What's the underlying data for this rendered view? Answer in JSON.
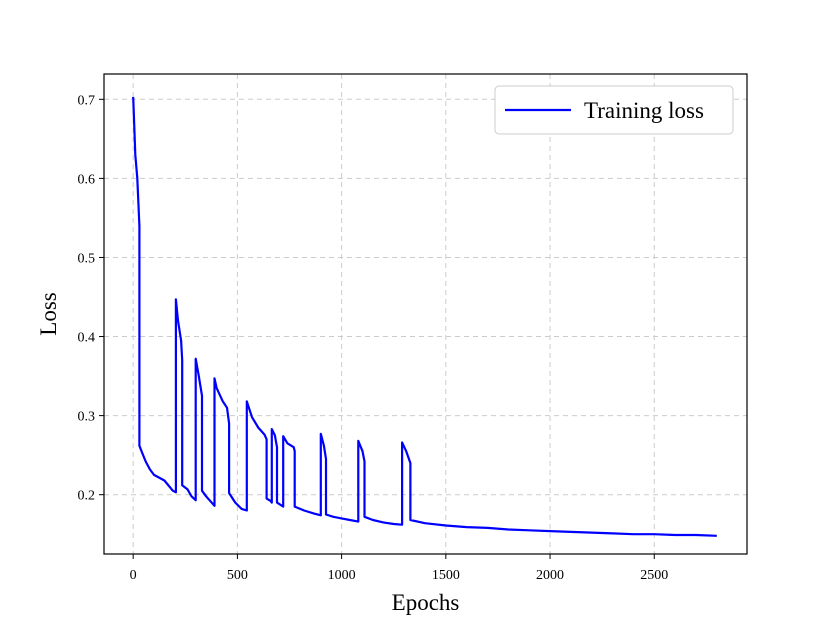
{
  "chart_data": {
    "type": "line",
    "title": "",
    "xlabel": "Epochs",
    "ylabel": "Loss",
    "xlim": [
      -140,
      2945
    ],
    "ylim": [
      0.125,
      0.732
    ],
    "xticks": [
      0,
      500,
      1000,
      1500,
      2000,
      2500
    ],
    "xtick_labels": [
      "0",
      "500",
      "1000",
      "1500",
      "2000",
      "2500"
    ],
    "yticks": [
      0.2,
      0.3,
      0.4,
      0.5,
      0.6,
      0.7
    ],
    "ytick_labels": [
      "0.2",
      "0.3",
      "0.4",
      "0.5",
      "0.6",
      "0.7"
    ],
    "grid": true,
    "legend_position": "top-right",
    "series": [
      {
        "name": "Training loss",
        "color": "#0000ff",
        "x": [
          0,
          10,
          20,
          30,
          30,
          40,
          60,
          80,
          100,
          150,
          190,
          205,
          205,
          215,
          230,
          235,
          235,
          260,
          280,
          300,
          300,
          315,
          330,
          330,
          350,
          390,
          390,
          400,
          430,
          450,
          460,
          460,
          490,
          520,
          545,
          545,
          570,
          600,
          630,
          640,
          640,
          660,
          665,
          665,
          680,
          690,
          690,
          720,
          720,
          740,
          770,
          775,
          775,
          820,
          870,
          900,
          900,
          915,
          925,
          925,
          960,
          1000,
          1040,
          1080,
          1080,
          1100,
          1110,
          1110,
          1150,
          1200,
          1250,
          1290,
          1290,
          1310,
          1330,
          1330,
          1400,
          1500,
          1600,
          1700,
          1800,
          1900,
          2000,
          2100,
          2200,
          2300,
          2400,
          2500,
          2600,
          2700,
          2800
        ],
        "y": [
          0.703,
          0.63,
          0.6,
          0.54,
          0.262,
          0.255,
          0.242,
          0.232,
          0.225,
          0.218,
          0.205,
          0.203,
          0.447,
          0.42,
          0.395,
          0.37,
          0.212,
          0.207,
          0.198,
          0.193,
          0.372,
          0.35,
          0.325,
          0.205,
          0.198,
          0.186,
          0.347,
          0.335,
          0.318,
          0.31,
          0.29,
          0.202,
          0.19,
          0.182,
          0.18,
          0.318,
          0.298,
          0.285,
          0.276,
          0.27,
          0.195,
          0.192,
          0.19,
          0.283,
          0.275,
          0.26,
          0.19,
          0.185,
          0.274,
          0.265,
          0.26,
          0.255,
          0.185,
          0.18,
          0.176,
          0.174,
          0.277,
          0.262,
          0.245,
          0.175,
          0.172,
          0.17,
          0.168,
          0.166,
          0.268,
          0.255,
          0.242,
          0.172,
          0.168,
          0.165,
          0.163,
          0.162,
          0.266,
          0.255,
          0.24,
          0.168,
          0.164,
          0.161,
          0.159,
          0.158,
          0.156,
          0.155,
          0.154,
          0.153,
          0.152,
          0.151,
          0.15,
          0.15,
          0.149,
          0.149,
          0.148
        ]
      }
    ]
  }
}
